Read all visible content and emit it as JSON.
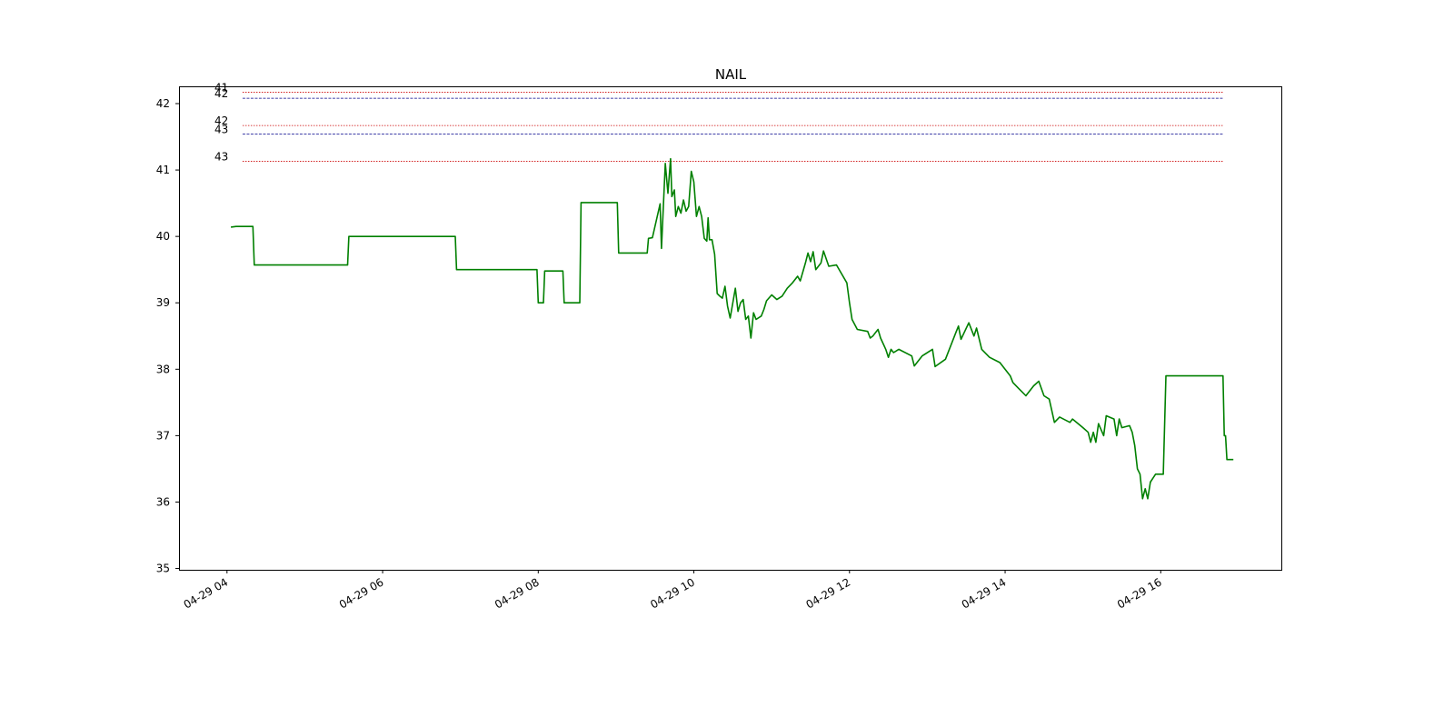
{
  "chart_data": {
    "type": "line",
    "title": "NAIL",
    "xlabel": "",
    "ylabel": "",
    "x_range": [
      "2024-04-29T03:23",
      "2024-04-29T17:33"
    ],
    "ylim": [
      34.98,
      42.26
    ],
    "x_ticks": [
      {
        "time": "2024-04-29T04:00",
        "label": "04-29 04"
      },
      {
        "time": "2024-04-29T06:00",
        "label": "04-29 06"
      },
      {
        "time": "2024-04-29T08:00",
        "label": "04-29 08"
      },
      {
        "time": "2024-04-29T10:00",
        "label": "04-29 10"
      },
      {
        "time": "2024-04-29T12:00",
        "label": "04-29 12"
      },
      {
        "time": "2024-04-29T14:00",
        "label": "04-29 14"
      },
      {
        "time": "2024-04-29T16:00",
        "label": "04-29 16"
      }
    ],
    "y_ticks": [
      35,
      36,
      37,
      38,
      39,
      40,
      41,
      42
    ],
    "grid": false,
    "legend": "none",
    "series": [
      {
        "color": "#008000",
        "step": true,
        "points": [
          [
            "04:03",
            40.14
          ],
          [
            "04:07",
            40.15
          ],
          [
            "04:20",
            40.15
          ],
          [
            "04:21",
            39.57
          ],
          [
            "05:33",
            39.57
          ],
          [
            "05:34",
            40.0
          ],
          [
            "06:56",
            40.0
          ],
          [
            "06:57",
            39.5
          ],
          [
            "07:59",
            39.5
          ],
          [
            "08:00",
            39.0
          ],
          [
            "08:04",
            39.0
          ],
          [
            "08:05",
            39.48
          ],
          [
            "08:19",
            39.48
          ],
          [
            "08:20",
            39.0
          ],
          [
            "08:32",
            39.0
          ],
          [
            "08:33",
            40.51
          ],
          [
            "09:01",
            40.51
          ],
          [
            "09:02",
            39.75
          ],
          [
            "09:24",
            39.75
          ],
          [
            "09:25",
            39.97
          ],
          [
            "09:28",
            39.98
          ],
          [
            "09:34",
            40.49
          ],
          [
            "09:35",
            39.82
          ],
          [
            "09:38",
            41.1
          ],
          [
            "09:40",
            40.65
          ],
          [
            "09:42",
            41.17
          ],
          [
            "09:43",
            40.6
          ],
          [
            "09:45",
            40.7
          ],
          [
            "09:46",
            40.3
          ],
          [
            "09:48",
            40.45
          ],
          [
            "09:50",
            40.35
          ],
          [
            "09:52",
            40.55
          ],
          [
            "09:54",
            40.38
          ],
          [
            "09:56",
            40.45
          ],
          [
            "09:58",
            40.98
          ],
          [
            "10:00",
            40.82
          ],
          [
            "10:02",
            40.3
          ],
          [
            "10:04",
            40.45
          ],
          [
            "10:06",
            40.3
          ],
          [
            "10:08",
            39.97
          ],
          [
            "10:10",
            39.93
          ],
          [
            "10:11",
            40.28
          ],
          [
            "10:12",
            39.95
          ],
          [
            "10:14",
            39.95
          ],
          [
            "10:16",
            39.73
          ],
          [
            "10:18",
            39.14
          ],
          [
            "10:20",
            39.1
          ],
          [
            "10:22",
            39.07
          ],
          [
            "10:24",
            39.25
          ],
          [
            "10:26",
            38.95
          ],
          [
            "10:28",
            38.77
          ],
          [
            "10:30",
            39.0
          ],
          [
            "10:32",
            39.22
          ],
          [
            "10:34",
            38.87
          ],
          [
            "10:36",
            39.0
          ],
          [
            "10:38",
            39.05
          ],
          [
            "10:40",
            38.75
          ],
          [
            "10:42",
            38.8
          ],
          [
            "10:44",
            38.47
          ],
          [
            "10:46",
            38.85
          ],
          [
            "10:48",
            38.75
          ],
          [
            "10:52",
            38.8
          ],
          [
            "10:54",
            38.9
          ],
          [
            "10:56",
            39.03
          ],
          [
            "11:00",
            39.12
          ],
          [
            "11:04",
            39.05
          ],
          [
            "11:08",
            39.1
          ],
          [
            "11:12",
            39.22
          ],
          [
            "11:16",
            39.3
          ],
          [
            "11:20",
            39.4
          ],
          [
            "11:22",
            39.33
          ],
          [
            "11:26",
            39.6
          ],
          [
            "11:28",
            39.75
          ],
          [
            "11:30",
            39.62
          ],
          [
            "11:32",
            39.77
          ],
          [
            "11:34",
            39.5
          ],
          [
            "11:38",
            39.6
          ],
          [
            "11:40",
            39.78
          ],
          [
            "11:44",
            39.55
          ],
          [
            "11:50",
            39.57
          ],
          [
            "11:58",
            39.3
          ],
          [
            "12:00",
            39.0
          ],
          [
            "12:02",
            38.75
          ],
          [
            "12:06",
            38.6
          ],
          [
            "12:14",
            38.57
          ],
          [
            "12:16",
            38.47
          ],
          [
            "12:18",
            38.5
          ],
          [
            "12:20",
            38.55
          ],
          [
            "12:22",
            38.6
          ],
          [
            "12:24",
            38.47
          ],
          [
            "12:28",
            38.3
          ],
          [
            "12:30",
            38.18
          ],
          [
            "12:32",
            38.3
          ],
          [
            "12:34",
            38.25
          ],
          [
            "12:38",
            38.3
          ],
          [
            "12:48",
            38.2
          ],
          [
            "12:50",
            38.05
          ],
          [
            "12:56",
            38.2
          ],
          [
            "13:04",
            38.3
          ],
          [
            "13:06",
            38.04
          ],
          [
            "13:14",
            38.15
          ],
          [
            "13:22",
            38.55
          ],
          [
            "13:24",
            38.65
          ],
          [
            "13:26",
            38.45
          ],
          [
            "13:32",
            38.7
          ],
          [
            "13:36",
            38.5
          ],
          [
            "13:38",
            38.62
          ],
          [
            "13:42",
            38.3
          ],
          [
            "13:48",
            38.18
          ],
          [
            "13:56",
            38.1
          ],
          [
            "14:04",
            37.9
          ],
          [
            "14:06",
            37.8
          ],
          [
            "14:10",
            37.72
          ],
          [
            "14:16",
            37.6
          ],
          [
            "14:22",
            37.75
          ],
          [
            "14:26",
            37.82
          ],
          [
            "14:30",
            37.6
          ],
          [
            "14:34",
            37.55
          ],
          [
            "14:38",
            37.2
          ],
          [
            "14:42",
            37.28
          ],
          [
            "14:50",
            37.2
          ],
          [
            "14:52",
            37.25
          ],
          [
            "15:00",
            37.12
          ],
          [
            "15:04",
            37.05
          ],
          [
            "15:06",
            36.9
          ],
          [
            "15:08",
            37.05
          ],
          [
            "15:10",
            36.9
          ],
          [
            "15:12",
            37.18
          ],
          [
            "15:16",
            37.0
          ],
          [
            "15:18",
            37.3
          ],
          [
            "15:24",
            37.25
          ],
          [
            "15:26",
            37.0
          ],
          [
            "15:28",
            37.25
          ],
          [
            "15:30",
            37.12
          ],
          [
            "15:36",
            37.15
          ],
          [
            "15:38",
            37.05
          ],
          [
            "15:40",
            36.85
          ],
          [
            "15:42",
            36.5
          ],
          [
            "15:44",
            36.42
          ],
          [
            "15:46",
            36.05
          ],
          [
            "15:48",
            36.2
          ],
          [
            "15:50",
            36.05
          ],
          [
            "15:52",
            36.3
          ],
          [
            "15:56",
            36.42
          ],
          [
            "16:02",
            36.42
          ],
          [
            "16:04",
            37.9
          ],
          [
            "16:05",
            37.9
          ],
          [
            "16:48",
            37.9
          ],
          [
            "16:49",
            37.0
          ],
          [
            "16:50",
            37.0
          ],
          [
            "16:51",
            36.64
          ],
          [
            "16:56",
            36.64
          ]
        ]
      }
    ],
    "reference_lines": [
      {
        "label": "41",
        "y": 42.17,
        "color": "#cc0000",
        "style": "dotted"
      },
      {
        "label": "42",
        "y": 42.08,
        "color": "#00008b",
        "style": "dashed"
      },
      {
        "label": "42",
        "y": 41.67,
        "color": "#cc0000",
        "style": "dotted"
      },
      {
        "label": "43",
        "y": 41.54,
        "color": "#00008b",
        "style": "dashed"
      },
      {
        "label": "43",
        "y": 41.13,
        "color": "#cc0000",
        "style": "dotted"
      }
    ],
    "reference_line_span": [
      "04:12",
      "16:48"
    ]
  }
}
